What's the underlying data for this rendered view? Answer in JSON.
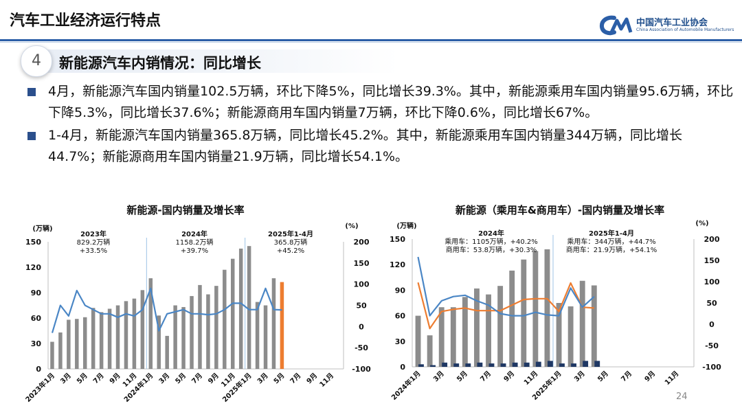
{
  "page_title": "汽车工业经济运行特点",
  "logo": {
    "name_cn": "中国汽车工业协会",
    "name_en": "China Association of Automobile Manufacturers",
    "icon": "caam-logo-icon"
  },
  "section": {
    "number": "4",
    "title": "新能源汽车内销情况：同比增长"
  },
  "bullets": [
    "4月，新能源汽车国内销量102.5万辆，环比下降5%，同比增长39.3%。其中，新能源乘用车国内销量95.6万辆，环比下降5.3%，同比增长37.6%；新能源商用车国内销量7万辆，环比下降0.6%，同比增长67%。",
    "1-4月，新能源汽车国内销量365.8万辆，同比增长45.2%。其中，新能源乘用车国内销量344万辆，同比增长44.7%；新能源商用车国内销量21.9万辆，同比增长54.1%。"
  ],
  "page_number": "24",
  "colors": {
    "bar": "#8c8c8c",
    "bar_highlight": "#ed7d31",
    "line": "#4a86c5",
    "commercial_bar": "#1f3864",
    "passenger_line": "#ed7d31",
    "commercial_line": "#4a86c5",
    "accent": "#2b5ea7"
  },
  "chart_data": [
    {
      "type": "bar",
      "title": "新能源-国内销量及增长率",
      "y_unit_left": "(万辆)",
      "y_unit_right": "(%)",
      "ylim_left": [
        0,
        150
      ],
      "ylim_right": [
        -100,
        200
      ],
      "yticks_left": [
        "0",
        "30",
        "60",
        "90",
        "120",
        "150"
      ],
      "yticks_right": [
        "-100",
        "-50",
        "0",
        "50",
        "100",
        "150",
        "200"
      ],
      "x_tick_labels": [
        "2023年1月",
        "3月",
        "5月",
        "7月",
        "9月",
        "11月",
        "2024年1月",
        "3月",
        "5月",
        "7月",
        "9月",
        "11月",
        "2025年1月",
        "3月",
        "5月",
        "7月",
        "9月",
        "11月"
      ],
      "months": [
        "2023-01",
        "2023-02",
        "2023-03",
        "2023-04",
        "2023-05",
        "2023-06",
        "2023-07",
        "2023-08",
        "2023-09",
        "2023-10",
        "2023-11",
        "2023-12",
        "2024-01",
        "2024-02",
        "2024-03",
        "2024-04",
        "2024-05",
        "2024-06",
        "2024-07",
        "2024-08",
        "2024-09",
        "2024-10",
        "2024-11",
        "2024-12",
        "2025-01",
        "2025-02",
        "2025-03",
        "2025-04",
        "2025-05",
        "2025-06",
        "2025-07",
        "2025-08",
        "2025-09",
        "2025-10",
        "2025-11",
        "2025-12"
      ],
      "series": [
        {
          "values": [
            32,
            43,
            58,
            59,
            61,
            72,
            67,
            71,
            75,
            80,
            83,
            93,
            107,
            63,
            39,
            75,
            73,
            86,
            99,
            88,
            98,
            117,
            130,
            142,
            145,
            79,
            75,
            107,
            102.5
          ]
        },
        {
          "values": [
            -15,
            50,
            25,
            85,
            50,
            40,
            30,
            30,
            22,
            30,
            25,
            40,
            90,
            -10,
            30,
            35,
            40,
            30,
            30,
            28,
            30,
            40,
            55,
            55,
            40,
            40,
            90,
            40,
            39.3
          ]
        }
      ],
      "annotations": [
        {
          "lines": [
            "2023年",
            "829.2万辆",
            "+33.5%"
          ]
        },
        {
          "lines": [
            "2024年",
            "1158.2万辆",
            "+39.7%"
          ]
        },
        {
          "lines": [
            "2025年1-4月",
            "365.8万辆",
            "+45.2%"
          ]
        }
      ]
    },
    {
      "type": "bar",
      "title": "新能源（乘用车&商用车）-国内销量及增长率",
      "y_unit_left": "(万辆)",
      "y_unit_right": "(%)",
      "ylim_left": [
        0,
        150
      ],
      "ylim_right": [
        -100,
        200
      ],
      "yticks_left": [
        "0",
        "30",
        "60",
        "90",
        "120",
        "150"
      ],
      "yticks_right": [
        "-100",
        "-50",
        "0",
        "50",
        "100",
        "150",
        "200"
      ],
      "x_tick_labels": [
        "2024年1月",
        "3月",
        "5月",
        "7月",
        "9月",
        "11月",
        "2025年1月",
        "3月",
        "5月",
        "7月",
        "9月",
        "11月"
      ],
      "months": [
        "2024-01",
        "2024-02",
        "2024-03",
        "2024-04",
        "2024-05",
        "2024-06",
        "2024-07",
        "2024-08",
        "2024-09",
        "2024-10",
        "2024-11",
        "2024-12",
        "2025-01",
        "2025-02",
        "2025-03",
        "2025-04",
        "2025-05",
        "2025-06",
        "2025-07",
        "2025-08",
        "2025-09",
        "2025-10",
        "2025-11",
        "2025-12"
      ],
      "series": [
        {
          "values": [
            60,
            37,
            70,
            70,
            82,
            92,
            85,
            95,
            113,
            126,
            136,
            138,
            75,
            71,
            101,
            95.6
          ]
        },
        {
          "values": [
            3,
            2,
            5,
            4,
            4,
            5,
            4,
            4,
            5,
            5,
            6,
            7,
            4,
            4,
            7,
            7
          ]
        },
        {
          "values": [
            98,
            -10,
            30,
            35,
            38,
            32,
            32,
            32,
            45,
            58,
            60,
            60,
            30,
            97,
            40,
            38
          ]
        },
        {
          "values": [
            158,
            20,
            55,
            65,
            68,
            55,
            45,
            25,
            20,
            20,
            28,
            22,
            20,
            85,
            40,
            65
          ]
        }
      ],
      "annotations": [
        {
          "lines": [
            "2024年",
            "乘用车：1105万辆，+40.2%",
            "商用车：53.8万辆，+30.3%"
          ]
        },
        {
          "lines": [
            "2025年1-4月",
            "乘用车：344万辆，+44.7%",
            "商用车：21.9万辆，+54.1%"
          ]
        }
      ]
    }
  ]
}
